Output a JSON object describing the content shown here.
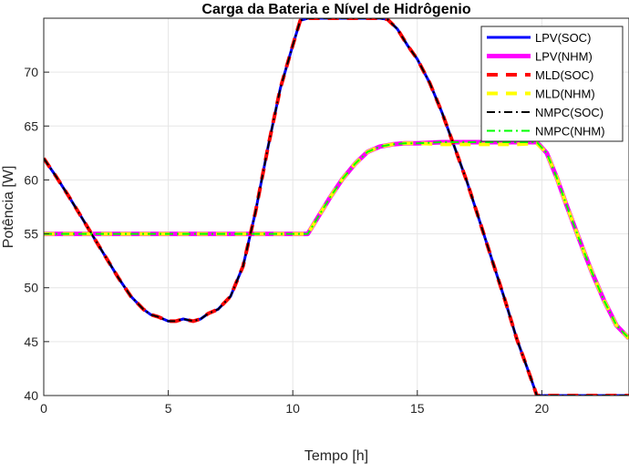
{
  "chart_data": {
    "type": "line",
    "title": "Carga da Bateria e Nível de Hidrôgenio",
    "xlabel": "Tempo [h]",
    "ylabel": "Potência [W]",
    "xlim": [
      0,
      23.5
    ],
    "ylim": [
      40,
      75
    ],
    "xticks": [
      0,
      5,
      10,
      15,
      20
    ],
    "yticks": [
      40,
      45,
      50,
      55,
      60,
      65,
      70
    ],
    "grid": true,
    "legend_position": "top-right",
    "series": [
      {
        "name": "LPV(SOC)",
        "color": "#0000ff",
        "style": "solid",
        "width": 3,
        "x": [
          0,
          0.5,
          1,
          1.5,
          2,
          2.5,
          3,
          3.5,
          4,
          4.3,
          4.6,
          5,
          5.3,
          5.6,
          6,
          6.3,
          6.6,
          7,
          7.5,
          8,
          8.5,
          9,
          9.5,
          10,
          10.3,
          10.6,
          11,
          11.5,
          12,
          12.5,
          13,
          13.5,
          13.8,
          14.2,
          14.6,
          15,
          15.5,
          16,
          16.5,
          17,
          17.5,
          18,
          18.5,
          19,
          19.5,
          19.8,
          20,
          20.5,
          21,
          22,
          23,
          23.5
        ],
        "y": [
          62,
          60.3,
          58.5,
          56.6,
          54.7,
          52.8,
          50.9,
          49.2,
          48,
          47.5,
          47.3,
          46.9,
          46.9,
          47.1,
          46.9,
          47.1,
          47.6,
          48,
          49.2,
          52,
          57,
          63,
          68.5,
          72.5,
          74.8,
          75,
          75,
          75,
          75,
          75,
          75,
          75,
          74.9,
          74,
          72.5,
          71.2,
          69,
          66.2,
          63,
          59.8,
          56.2,
          52.6,
          49,
          45.2,
          42,
          40,
          40,
          40,
          40,
          40,
          40,
          40
        ]
      },
      {
        "name": "LPV(NHM)",
        "color": "#ff00ff",
        "style": "solid",
        "width": 5,
        "x": [
          0,
          1,
          2,
          3,
          4,
          5,
          6,
          7,
          8,
          9,
          10,
          10.6,
          11,
          11.5,
          12,
          12.5,
          13,
          13.5,
          14,
          14.5,
          15,
          16,
          17,
          18,
          19,
          19.8,
          20.2,
          20.6,
          21,
          21.5,
          22,
          22.5,
          23,
          23.5
        ],
        "y": [
          55,
          55,
          55,
          55,
          55,
          55,
          55,
          55,
          55,
          55,
          55,
          55,
          56.5,
          58.4,
          60.1,
          61.5,
          62.6,
          63.1,
          63.3,
          63.4,
          63.4,
          63.5,
          63.5,
          63.5,
          63.5,
          63.5,
          62.5,
          60.2,
          57.6,
          54.5,
          51.5,
          48.8,
          46.5,
          45.3
        ]
      },
      {
        "name": "MLD(SOC)",
        "color": "#ff0000",
        "style": "dashed",
        "width": 4,
        "x": [
          0,
          0.5,
          1,
          1.5,
          2,
          2.5,
          3,
          3.5,
          4,
          4.3,
          4.6,
          5,
          5.3,
          5.6,
          6,
          6.3,
          6.6,
          7,
          7.5,
          8,
          8.5,
          9,
          9.5,
          10,
          10.3,
          10.6,
          11,
          11.5,
          12,
          12.5,
          13,
          13.5,
          13.8,
          14.2,
          14.6,
          15,
          15.5,
          16,
          16.5,
          17,
          17.5,
          18,
          18.5,
          19,
          19.5,
          19.8,
          20,
          20.5,
          21,
          22,
          23,
          23.5
        ],
        "y": [
          62,
          60.3,
          58.5,
          56.6,
          54.7,
          52.8,
          50.9,
          49.2,
          48,
          47.5,
          47.3,
          46.9,
          46.9,
          47.1,
          46.9,
          47.1,
          47.6,
          48,
          49.2,
          52,
          57,
          63,
          68.5,
          72.5,
          74.8,
          75,
          75,
          75,
          75,
          75,
          75,
          75,
          74.9,
          74,
          72.5,
          71.2,
          69,
          66.2,
          63,
          59.8,
          56.2,
          52.6,
          49,
          45.2,
          42,
          40,
          40,
          40,
          40,
          40,
          40,
          40
        ]
      },
      {
        "name": "MLD(NHM)",
        "color": "#ffff00",
        "style": "dashed",
        "width": 4,
        "x": [
          0,
          1,
          2,
          3,
          4,
          5,
          6,
          7,
          8,
          9,
          10,
          10.6,
          11,
          11.5,
          12,
          12.5,
          13,
          13.5,
          14,
          14.5,
          15,
          16,
          17,
          18,
          19,
          19.8,
          20.2,
          20.6,
          21,
          21.5,
          22,
          22.5,
          23,
          23.5
        ],
        "y": [
          55,
          55,
          55,
          55,
          55,
          55,
          55,
          55,
          55,
          55,
          55,
          55,
          56.5,
          58.4,
          60.1,
          61.5,
          62.6,
          63.1,
          63.3,
          63.4,
          63.4,
          63.3,
          63.3,
          63.3,
          63.3,
          63.4,
          62.5,
          60.2,
          57.6,
          54.5,
          51.5,
          48.8,
          46.5,
          45.3
        ]
      },
      {
        "name": "NMPC(SOC)",
        "color": "#000000",
        "style": "dashdot",
        "width": 2,
        "x": [
          0,
          0.5,
          1,
          1.5,
          2,
          2.5,
          3,
          3.5,
          4,
          4.3,
          4.6,
          5,
          5.3,
          5.6,
          6,
          6.3,
          6.6,
          7,
          7.5,
          8,
          8.5,
          9,
          9.5,
          10,
          10.3,
          10.6,
          11,
          11.5,
          12,
          12.5,
          13,
          13.5,
          13.8,
          14.2,
          14.6,
          15,
          15.5,
          16,
          16.5,
          17,
          17.5,
          18,
          18.5,
          19,
          19.5,
          19.8,
          20,
          20.5,
          21,
          22,
          23,
          23.5
        ],
        "y": [
          62,
          60.3,
          58.5,
          56.6,
          54.7,
          52.8,
          50.9,
          49.2,
          48,
          47.5,
          47.3,
          46.9,
          46.9,
          47.1,
          46.9,
          47.1,
          47.6,
          48,
          49.2,
          52,
          57,
          63,
          68.5,
          72.5,
          74.8,
          75,
          75,
          75,
          75,
          75,
          75,
          75,
          74.9,
          74,
          72.5,
          71.2,
          69,
          66.2,
          63,
          59.8,
          56.2,
          52.6,
          49,
          45.2,
          42,
          40,
          40,
          40,
          40,
          40,
          40,
          40
        ]
      },
      {
        "name": "NMPC(NHM)",
        "color": "#00ff00",
        "style": "dashdot",
        "width": 2,
        "x": [
          0,
          1,
          2,
          3,
          4,
          5,
          6,
          7,
          8,
          9,
          10,
          10.6,
          11,
          11.5,
          12,
          12.5,
          13,
          13.5,
          14,
          14.5,
          15,
          16,
          17,
          18,
          19,
          19.8,
          20.2,
          20.6,
          21,
          21.5,
          22,
          22.5,
          23,
          23.5
        ],
        "y": [
          55,
          55,
          55,
          55,
          55,
          55,
          55,
          55,
          55,
          55,
          55,
          55,
          56.5,
          58.4,
          60.1,
          61.5,
          62.6,
          63.1,
          63.3,
          63.4,
          63.4,
          63.5,
          63.5,
          63.5,
          63.5,
          63.5,
          62.5,
          60.2,
          57.6,
          54.5,
          51.5,
          48.8,
          46.5,
          45.3
        ]
      }
    ]
  }
}
